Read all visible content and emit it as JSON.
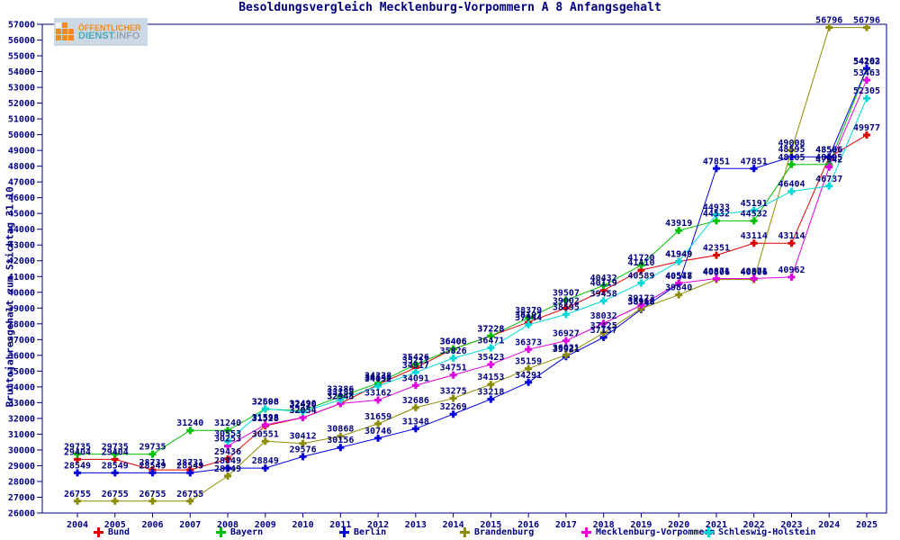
{
  "title": "Besoldungsvergleich Mecklenburg-Vorpommern A 8 Anfangsgehalt",
  "y_axis_title": "Bruttojahresgehalt zum Stichtag 31.10.",
  "logo": {
    "line1": "ÖFFENTLICHER",
    "line2_teal": "DIENST",
    "line2_gray": ".INFO"
  },
  "colors": {
    "axis": "#000080",
    "text": "#000080",
    "background": "#ffffff",
    "logo_orange": "#ef8b1f",
    "logo_teal": "#4fa8b8",
    "logo_gray": "#98a6b2"
  },
  "chart_data": {
    "type": "line",
    "marker": "plus",
    "grid": false,
    "legend_position": "bottom",
    "x": [
      2004,
      2005,
      2006,
      2007,
      2008,
      2009,
      2010,
      2011,
      2012,
      2013,
      2014,
      2015,
      2016,
      2017,
      2018,
      2019,
      2020,
      2021,
      2022,
      2023,
      2024,
      2025
    ],
    "ylim": [
      26000,
      57000
    ],
    "y_tick_step": 1000,
    "series": [
      {
        "name": "Bund",
        "color": "#dc0000",
        "values": [
          29404,
          29404,
          28731,
          28731,
          29436,
          31528,
          32054,
          32948,
          34146,
          35217,
          36406,
          37228,
          38107,
          39002,
          40119,
          41410,
          41949,
          42351,
          43114,
          43114,
          48566,
          49977
        ]
      },
      {
        "name": "Bayern",
        "color": "#00c000",
        "values": [
          29735,
          29735,
          29735,
          31240,
          31240,
          32596,
          32490,
          33386,
          34238,
          35426,
          36406,
          37228,
          38379,
          39507,
          40432,
          41720,
          43919,
          44532,
          44532,
          48105,
          48105,
          54163
        ]
      },
      {
        "name": "Berlin",
        "color": "#0000dc",
        "values": [
          28549,
          28549,
          28549,
          28549,
          28849,
          28849,
          29576,
          30156,
          30746,
          31348,
          32269,
          33218,
          34291,
          35921,
          37137,
          38918,
          40548,
          47851,
          47851,
          48595,
          48586,
          54202
        ]
      },
      {
        "name": "Brandenburg",
        "color": "#8c8c00",
        "values": [
          26755,
          26755,
          26755,
          26755,
          28349,
          30551,
          30412,
          30868,
          31659,
          32686,
          33275,
          34153,
          35159,
          36021,
          37425,
          38968,
          39840,
          40806,
          40806,
          49008,
          56796,
          56796
        ]
      },
      {
        "name": "Mecklenburg-Vorpommern",
        "color": "#e000e0",
        "values": [
          null,
          null,
          null,
          null,
          30253,
          31598,
          32054,
          32943,
          33162,
          34091,
          34751,
          35423,
          36373,
          36927,
          38032,
          39173,
          40577,
          40871,
          40871,
          40962,
          47942,
          53463
        ]
      },
      {
        "name": "Schleswig-Holstein",
        "color": "#00d8d8",
        "values": [
          null,
          null,
          null,
          null,
          30553,
          32608,
          32420,
          33188,
          34052,
          34917,
          35826,
          36471,
          37944,
          38595,
          39458,
          40589,
          41949,
          44933,
          45191,
          46404,
          46737,
          52305
        ]
      }
    ]
  },
  "legend_item_lefts": [
    104,
    240,
    377,
    511,
    646,
    782
  ]
}
